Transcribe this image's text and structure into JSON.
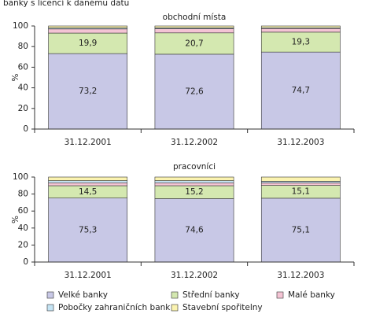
{
  "title": "banky s licencí k danému datu",
  "chart_data": [
    {
      "type": "bar",
      "stacked": true,
      "title": "obchodní místa",
      "y_label": "%",
      "categories": [
        "31.12.2001",
        "31.12.2002",
        "31.12.2003"
      ],
      "series": [
        {
          "name": "Velké banky",
          "color": "#c8c8e6",
          "values": [
            73.2,
            72.6,
            74.7
          ],
          "value_labels": [
            "73,2",
            "72,6",
            "74,7"
          ]
        },
        {
          "name": "Střední banky",
          "color": "#d4e8b0",
          "values": [
            19.9,
            20.7,
            19.3
          ],
          "value_labels": [
            "19,9",
            "20,7",
            "19,3"
          ]
        },
        {
          "name": "Malé banky",
          "color": "#f4c4d4",
          "values": [
            4,
            4,
            3.5
          ]
        },
        {
          "name": "Pobočky zahraničních bank",
          "color": "#c4e4f4",
          "values": [
            1,
            0.9,
            0.8
          ]
        },
        {
          "name": "Stavební spořitelny",
          "color": "#fbf3b0",
          "values": [
            1.9,
            1.8,
            1.7
          ]
        }
      ],
      "ylim": [
        0,
        100
      ],
      "yticks": [
        0,
        20,
        40,
        60,
        80,
        100
      ]
    },
    {
      "type": "bar",
      "stacked": true,
      "title": "pracovníci",
      "y_label": "%",
      "categories": [
        "31.12.2001",
        "31.12.2002",
        "31.12.2003"
      ],
      "series": [
        {
          "color": "#c8c8e6",
          "values": [
            75.3,
            74.6,
            75.1
          ],
          "value_labels": [
            "75,3",
            "74,6",
            "75,1"
          ]
        },
        {
          "color": "#d4e8b0",
          "values": [
            14.5,
            15.2,
            15.1
          ],
          "value_labels": [
            "14,5",
            "15,2",
            "15,1"
          ]
        },
        {
          "color": "#f4c4d4",
          "values": [
            3.5,
            3.5,
            3
          ]
        },
        {
          "color": "#c4e4f4",
          "values": [
            2.5,
            2.5,
            1.8
          ]
        },
        {
          "color": "#fbf3b0",
          "values": [
            4.2,
            4.2,
            5
          ]
        }
      ],
      "ylim": [
        0,
        100
      ],
      "yticks": [
        0,
        20,
        40,
        60,
        80,
        100
      ]
    }
  ]
}
